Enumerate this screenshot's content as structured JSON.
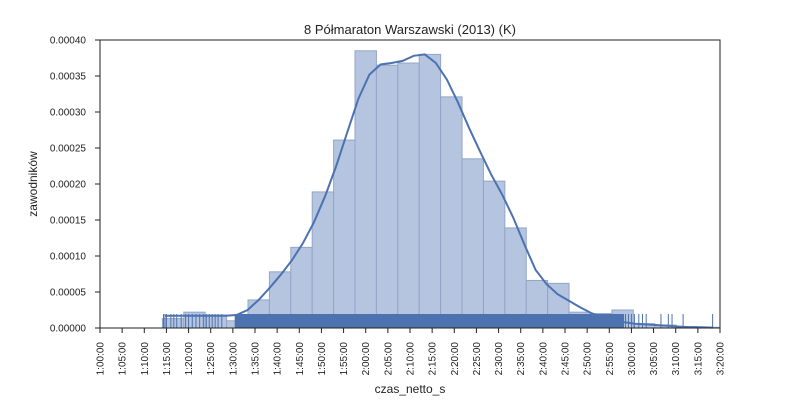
{
  "chart_data": {
    "type": "histogram",
    "title": "8 Półmaraton Warszawski (2013) (K)",
    "xlabel": "czas_netto_s",
    "ylabel": "zawodników",
    "x_range_seconds": [
      3600,
      12000
    ],
    "ylim": [
      0,
      0.0004
    ],
    "y_ticks": [
      0.0,
      5e-05,
      0.0001,
      0.00015,
      0.0002,
      0.00025,
      0.0003,
      0.00035,
      0.0004
    ],
    "y_tick_labels": [
      "0.00000",
      "0.00005",
      "0.00010",
      "0.00015",
      "0.00020",
      "0.00025",
      "0.00030",
      "0.00035",
      "0.00040"
    ],
    "x_ticks_seconds": [
      3600,
      3900,
      4200,
      4500,
      4800,
      5100,
      5400,
      5700,
      6000,
      6300,
      6600,
      6900,
      7200,
      7500,
      7800,
      8100,
      8400,
      8700,
      9000,
      9300,
      9600,
      9900,
      10200,
      10500,
      10800,
      11100,
      11400,
      11700,
      12000
    ],
    "x_tick_labels": [
      "1:00:00",
      "1:05:00",
      "1:10:00",
      "1:15:00",
      "1:20:00",
      "1:25:00",
      "1:30:00",
      "1:35:00",
      "1:40:00",
      "1:45:00",
      "1:50:00",
      "1:55:00",
      "2:00:00",
      "2:05:00",
      "2:10:00",
      "2:15:00",
      "2:20:00",
      "2:25:00",
      "2:30:00",
      "2:35:00",
      "2:40:00",
      "2:45:00",
      "2:50:00",
      "2:55:00",
      "3:00:00",
      "3:05:00",
      "3:10:00",
      "3:15:00",
      "3:20:00"
    ],
    "bins": [
      {
        "x0": 4445,
        "x1": 4735,
        "value": 1.3e-05
      },
      {
        "x0": 4735,
        "x1": 5025,
        "value": 2.2e-05
      },
      {
        "x0": 5025,
        "x1": 5315,
        "value": 1.8e-05
      },
      {
        "x0": 5315,
        "x1": 5605,
        "value": 1e-05
      },
      {
        "x0": 5605,
        "x1": 5895,
        "value": 3.9e-05
      },
      {
        "x0": 5895,
        "x1": 6185,
        "value": 7.8e-05
      },
      {
        "x0": 6185,
        "x1": 6475,
        "value": 0.000112
      },
      {
        "x0": 6475,
        "x1": 6765,
        "value": 0.000189
      },
      {
        "x0": 6765,
        "x1": 7055,
        "value": 0.000261
      },
      {
        "x0": 7055,
        "x1": 7345,
        "value": 0.000385
      },
      {
        "x0": 7345,
        "x1": 7635,
        "value": 0.000365
      },
      {
        "x0": 7635,
        "x1": 7925,
        "value": 0.000368
      },
      {
        "x0": 7925,
        "x1": 8215,
        "value": 0.00038
      },
      {
        "x0": 8215,
        "x1": 8505,
        "value": 0.000321
      },
      {
        "x0": 8505,
        "x1": 8795,
        "value": 0.000235
      },
      {
        "x0": 8795,
        "x1": 9085,
        "value": 0.000204
      },
      {
        "x0": 9085,
        "x1": 9375,
        "value": 0.000139
      },
      {
        "x0": 9375,
        "x1": 9665,
        "value": 6.6e-05
      },
      {
        "x0": 9665,
        "x1": 9955,
        "value": 6.2e-05
      },
      {
        "x0": 9955,
        "x1": 10245,
        "value": 2.2e-05
      },
      {
        "x0": 10245,
        "x1": 10535,
        "value": 2e-05
      },
      {
        "x0": 10535,
        "x1": 10825,
        "value": 2.5e-05
      },
      {
        "x0": 10825,
        "x1": 11115,
        "value": 6e-06
      },
      {
        "x0": 11115,
        "x1": 11405,
        "value": 4e-06
      },
      {
        "x0": 11405,
        "x1": 11695,
        "value": 2e-06
      },
      {
        "x0": 11695,
        "x1": 11985,
        "value": 1e-06
      }
    ],
    "kde": {
      "x": [
        4480,
        4700,
        4900,
        5100,
        5300,
        5450,
        5600,
        5750,
        5900,
        6050,
        6200,
        6350,
        6500,
        6650,
        6800,
        6950,
        7100,
        7250,
        7400,
        7550,
        7700,
        7850,
        8000,
        8150,
        8300,
        8450,
        8600,
        8750,
        8900,
        9050,
        9200,
        9350,
        9500,
        9650,
        9800,
        9950,
        10100,
        10250,
        10400,
        10550,
        10700,
        10850,
        11000,
        11150,
        11300,
        11450,
        11600,
        11750,
        11900
      ],
      "y": [
        1.7e-05,
        1.7e-05,
        1.7e-05,
        1.7e-05,
        1.7e-05,
        1.8e-05,
        2.5e-05,
        3.9e-05,
        5.6e-05,
        7.4e-05,
        9.4e-05,
        0.000118,
        0.000147,
        0.000183,
        0.000225,
        0.000272,
        0.000318,
        0.000352,
        0.000366,
        0.000368,
        0.000371,
        0.000378,
        0.00038,
        0.000368,
        0.000345,
        0.000313,
        0.000278,
        0.000245,
        0.000213,
        0.000185,
        0.000153,
        0.000116,
        8.1e-05,
        6.1e-05,
        4.7e-05,
        3.8e-05,
        2.9e-05,
        2.1e-05,
        1.5e-05,
        1.1e-05,
        8e-06,
        6e-06,
        5e-06,
        4e-06,
        3e-06,
        2e-06,
        1e-06,
        1e-06,
        5e-07
      ]
    },
    "rug": {
      "dense_from": 5425,
      "dense_to": 10700,
      "sparse": [
        4460,
        4480,
        4500,
        4560,
        4600,
        4640,
        4700,
        4760,
        4800,
        4850,
        4900,
        4950,
        5000,
        5040,
        5080,
        5120,
        5160,
        5200,
        5250,
        10720,
        10760,
        10800,
        10840,
        10900,
        10950,
        11000,
        11200,
        11300,
        11350,
        11500,
        11900
      ]
    },
    "grid": false,
    "colors": {
      "bar_fill": "#b5c5e0",
      "bar_edge": "#93a5c7",
      "line": "#4c72b0",
      "rug": "#4c72b0",
      "axis": "#222222"
    }
  }
}
